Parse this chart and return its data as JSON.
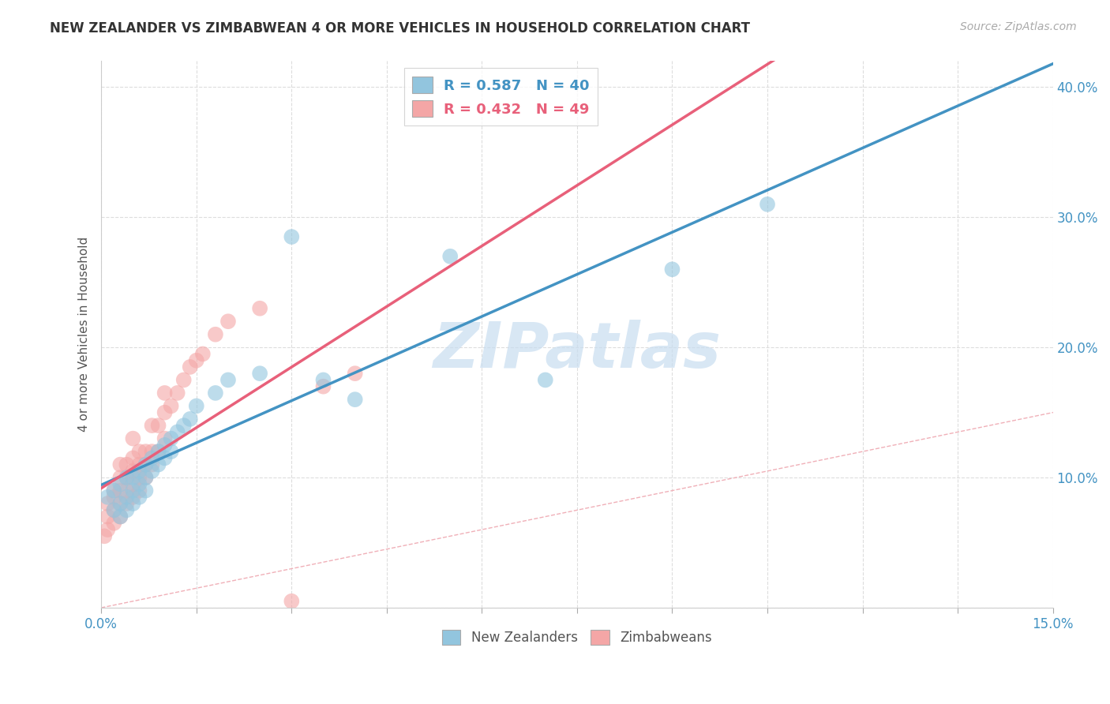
{
  "title": "NEW ZEALANDER VS ZIMBABWEAN 4 OR MORE VEHICLES IN HOUSEHOLD CORRELATION CHART",
  "source": "Source: ZipAtlas.com",
  "ylabel": "4 or more Vehicles in Household",
  "xlim": [
    0.0,
    0.15
  ],
  "ylim": [
    0.0,
    0.42
  ],
  "xticks": [
    0.0,
    0.015,
    0.03,
    0.045,
    0.06,
    0.075,
    0.09,
    0.105,
    0.12,
    0.135,
    0.15
  ],
  "xtick_labels": [
    "0.0%",
    "",
    "",
    "",
    "",
    "",
    "",
    "",
    "",
    "",
    "15.0%"
  ],
  "yticks": [
    0.0,
    0.1,
    0.2,
    0.3,
    0.4
  ],
  "ytick_labels": [
    "",
    "10.0%",
    "20.0%",
    "30.0%",
    "40.0%"
  ],
  "nz_R": 0.587,
  "nz_N": 40,
  "zim_R": 0.432,
  "zim_N": 49,
  "nz_color": "#92c5de",
  "zim_color": "#f4a6a6",
  "nz_line_color": "#4393c3",
  "zim_line_color": "#e8607a",
  "diagonal_color": "#f0b0b8",
  "watermark": "ZIPatlas",
  "nz_scatter_x": [
    0.001,
    0.002,
    0.002,
    0.003,
    0.003,
    0.003,
    0.004,
    0.004,
    0.004,
    0.005,
    0.005,
    0.005,
    0.006,
    0.006,
    0.006,
    0.007,
    0.007,
    0.007,
    0.008,
    0.008,
    0.009,
    0.009,
    0.01,
    0.01,
    0.011,
    0.011,
    0.012,
    0.013,
    0.014,
    0.015,
    0.018,
    0.02,
    0.025,
    0.03,
    0.035,
    0.04,
    0.055,
    0.07,
    0.09,
    0.105
  ],
  "nz_scatter_y": [
    0.085,
    0.09,
    0.075,
    0.095,
    0.08,
    0.07,
    0.1,
    0.085,
    0.075,
    0.1,
    0.09,
    0.08,
    0.105,
    0.095,
    0.085,
    0.11,
    0.1,
    0.09,
    0.115,
    0.105,
    0.12,
    0.11,
    0.125,
    0.115,
    0.13,
    0.12,
    0.135,
    0.14,
    0.145,
    0.155,
    0.165,
    0.175,
    0.18,
    0.285,
    0.175,
    0.16,
    0.27,
    0.175,
    0.26,
    0.31
  ],
  "zim_scatter_x": [
    0.0005,
    0.001,
    0.001,
    0.001,
    0.002,
    0.002,
    0.002,
    0.002,
    0.003,
    0.003,
    0.003,
    0.003,
    0.003,
    0.004,
    0.004,
    0.004,
    0.004,
    0.005,
    0.005,
    0.005,
    0.005,
    0.005,
    0.006,
    0.006,
    0.006,
    0.006,
    0.007,
    0.007,
    0.007,
    0.008,
    0.008,
    0.008,
    0.009,
    0.009,
    0.01,
    0.01,
    0.01,
    0.011,
    0.012,
    0.013,
    0.014,
    0.015,
    0.016,
    0.018,
    0.02,
    0.025,
    0.03,
    0.035,
    0.04
  ],
  "zim_scatter_y": [
    0.055,
    0.06,
    0.07,
    0.08,
    0.065,
    0.075,
    0.085,
    0.09,
    0.07,
    0.08,
    0.09,
    0.1,
    0.11,
    0.08,
    0.09,
    0.1,
    0.11,
    0.085,
    0.095,
    0.105,
    0.115,
    0.13,
    0.09,
    0.1,
    0.11,
    0.12,
    0.1,
    0.11,
    0.12,
    0.11,
    0.12,
    0.14,
    0.12,
    0.14,
    0.13,
    0.15,
    0.165,
    0.155,
    0.165,
    0.175,
    0.185,
    0.19,
    0.195,
    0.21,
    0.22,
    0.23,
    0.005,
    0.17,
    0.18
  ]
}
